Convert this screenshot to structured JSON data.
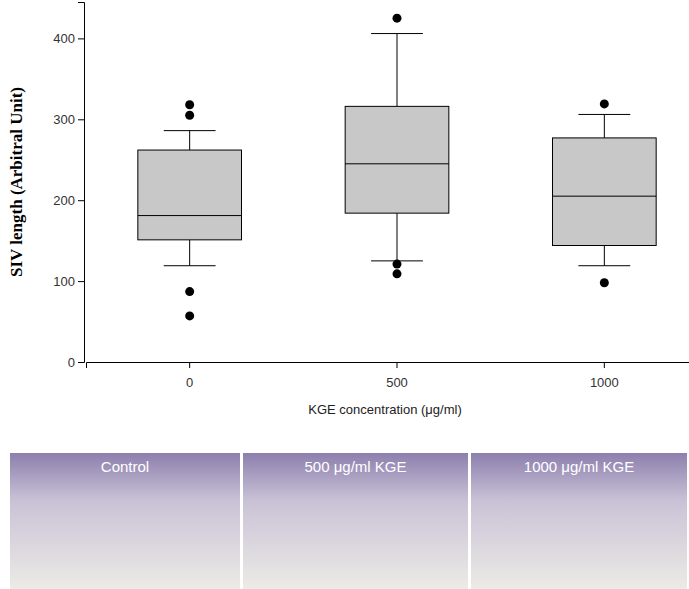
{
  "chart_data": {
    "type": "box",
    "y_label": "SIV length (Arbitral Unit)",
    "x_label": "KGE concentration (μg/ml)",
    "categories": [
      "0",
      "500",
      "1000"
    ],
    "boxes": [
      {
        "whisker_low": 119,
        "q1": 151,
        "median": 181,
        "q3": 262,
        "whisker_high": 286,
        "outliers": [
          318,
          305,
          87,
          57
        ]
      },
      {
        "whisker_low": 125,
        "q1": 184,
        "median": 245,
        "q3": 316,
        "whisker_high": 406,
        "outliers": [
          425,
          121,
          109
        ]
      },
      {
        "whisker_low": 119,
        "q1": 144,
        "median": 205,
        "q3": 277,
        "whisker_high": 306,
        "outliers": [
          319,
          98
        ]
      }
    ],
    "color": "#c8c8c8",
    "ylim": [
      0,
      445
    ],
    "yticks": [
      0,
      100,
      200,
      300,
      400
    ],
    "grid": false
  },
  "photo_panels": {
    "labels": [
      "Control",
      "500 μg/ml KGE",
      "1000 μg/ml KGE"
    ]
  }
}
